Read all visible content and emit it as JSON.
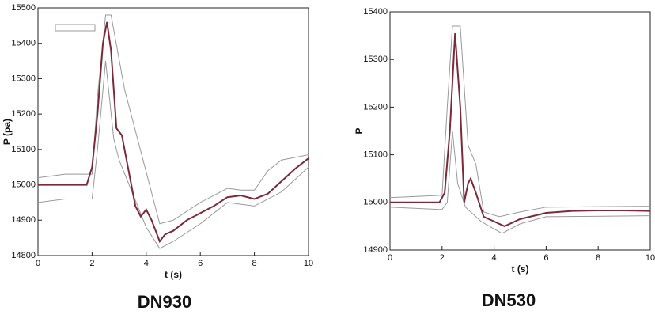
{
  "chart_data": [
    {
      "type": "line",
      "title": "DN930",
      "xlabel": "t (s)",
      "ylabel": "P (pa)",
      "xlim": [
        0,
        10
      ],
      "xticks": [
        0,
        2,
        4,
        6,
        8,
        10
      ],
      "ylim": [
        14800,
        15500
      ],
      "yticks": [
        14800,
        14900,
        15000,
        15100,
        15200,
        15300,
        15400,
        15500
      ],
      "series": [
        {
          "color": "#999999",
          "x": [
            0,
            1,
            2,
            2.2,
            2.5,
            2.7,
            3.2,
            4.5,
            5,
            6,
            7,
            7.5,
            8,
            8.5,
            9,
            10
          ],
          "values": [
            15020,
            15030,
            15030,
            15250,
            15480,
            15480,
            15270,
            14890,
            14900,
            14950,
            14990,
            14985,
            14985,
            15040,
            15070,
            15085
          ]
        },
        {
          "color": "#999999",
          "x": [
            0,
            1,
            2,
            2.2,
            2.5,
            2.8,
            3,
            4,
            4.5,
            5,
            6,
            7,
            8,
            9,
            10
          ],
          "values": [
            14950,
            14960,
            14960,
            15100,
            15350,
            15130,
            15070,
            14880,
            14820,
            14840,
            14890,
            14950,
            14940,
            14980,
            15050
          ]
        },
        {
          "color": "#7a2a3a",
          "x": [
            0,
            1,
            1.8,
            2,
            2.2,
            2.4,
            2.55,
            2.7,
            2.9,
            3.1,
            3.3,
            3.6,
            3.8,
            4,
            4.2,
            4.5,
            4.7,
            5,
            5.5,
            6,
            6.5,
            7,
            7.5,
            8,
            8.5,
            9,
            9.5,
            10
          ],
          "values": [
            15000,
            15000,
            15000,
            15050,
            15200,
            15400,
            15460,
            15380,
            15160,
            15140,
            15060,
            14940,
            14910,
            14930,
            14900,
            14840,
            14860,
            14870,
            14900,
            14920,
            14940,
            14965,
            14970,
            14960,
            14975,
            15010,
            15045,
            15075
          ]
        }
      ]
    },
    {
      "type": "line",
      "title": "DN530",
      "xlabel": "t (s)",
      "ylabel": "P",
      "xlim": [
        0,
        10
      ],
      "xticks": [
        0,
        2,
        4,
        6,
        8,
        10
      ],
      "ylim": [
        14900,
        15400
      ],
      "yticks": [
        14900,
        15000,
        15100,
        15200,
        15300,
        15400
      ],
      "series": [
        {
          "color": "#999999",
          "x": [
            0,
            2,
            2.2,
            2.4,
            2.7,
            3,
            3.3,
            3.6,
            4.2,
            5,
            6,
            10
          ],
          "values": [
            15010,
            15015,
            15200,
            15370,
            15370,
            15120,
            15080,
            14980,
            14970,
            14980,
            14990,
            14992
          ]
        },
        {
          "color": "#999999",
          "x": [
            0,
            2,
            2.2,
            2.4,
            2.6,
            2.9,
            3.5,
            4.3,
            5,
            6,
            10
          ],
          "values": [
            14990,
            14985,
            15000,
            15150,
            15040,
            14990,
            14960,
            14935,
            14955,
            14970,
            14972
          ]
        },
        {
          "color": "#7a2a3a",
          "x": [
            0,
            1.9,
            2.1,
            2.3,
            2.5,
            2.7,
            2.85,
            3,
            3.1,
            3.3,
            3.6,
            4,
            4.4,
            5,
            6,
            7,
            8,
            9,
            10
          ],
          "values": [
            15000,
            15000,
            15020,
            15150,
            15355,
            15200,
            15000,
            15040,
            15050,
            15020,
            14970,
            14960,
            14950,
            14965,
            14978,
            14982,
            14983,
            14983,
            14982
          ]
        }
      ]
    }
  ]
}
